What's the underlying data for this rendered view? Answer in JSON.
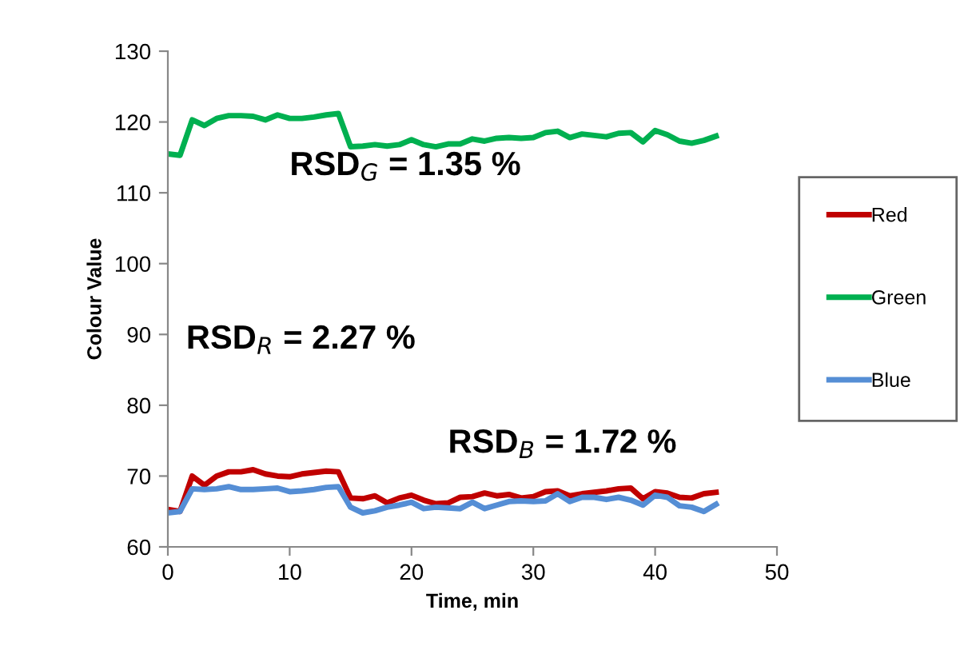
{
  "chart_data": {
    "type": "line",
    "xlabel": "Time, min",
    "ylabel": "Colour Value",
    "x": [
      0,
      1,
      2,
      3,
      4,
      5,
      6,
      7,
      8,
      9,
      10,
      11,
      12,
      13,
      14,
      15,
      16,
      17,
      18,
      19,
      20,
      21,
      22,
      23,
      24,
      25,
      26,
      27,
      28,
      29,
      30,
      31,
      32,
      33,
      34,
      35,
      36,
      37,
      38,
      39,
      40,
      41,
      42,
      43,
      44,
      45
    ],
    "series": [
      {
        "name": "Red",
        "color": "#c00000",
        "values": [
          65.3,
          65,
          70,
          68.7,
          70,
          70.6,
          70.6,
          70.9,
          70.3,
          70,
          69.9,
          70.3,
          70.5,
          70.7,
          70.6,
          66.9,
          66.8,
          67.2,
          66.2,
          66.9,
          67.3,
          66.6,
          66.1,
          66.2,
          67,
          67.1,
          67.6,
          67.2,
          67.4,
          66.9,
          67.1,
          67.8,
          67.9,
          67.2,
          67.5,
          67.7,
          67.9,
          68.2,
          68.3,
          66.8,
          67.8,
          67.6,
          67,
          66.9,
          67.5,
          67.7
        ]
      },
      {
        "name": "Green",
        "color": "#00b050",
        "values": [
          115.5,
          115.3,
          120.3,
          119.5,
          120.5,
          120.9,
          120.9,
          120.8,
          120.3,
          121,
          120.5,
          120.5,
          120.7,
          121,
          121.2,
          116.5,
          116.6,
          116.8,
          116.6,
          116.8,
          117.5,
          116.8,
          116.5,
          116.9,
          116.9,
          117.6,
          117.3,
          117.7,
          117.8,
          117.7,
          117.8,
          118.5,
          118.7,
          117.8,
          118.3,
          118.1,
          117.9,
          118.4,
          118.5,
          117.2,
          118.8,
          118.2,
          117.3,
          117,
          117.4,
          118
        ]
      },
      {
        "name": "Blue",
        "color": "#558ed5",
        "values": [
          64.8,
          65,
          68.2,
          68.1,
          68.2,
          68.5,
          68.1,
          68.1,
          68.2,
          68.3,
          67.8,
          67.9,
          68.1,
          68.4,
          68.5,
          65.6,
          64.8,
          65.1,
          65.6,
          65.9,
          66.3,
          65.4,
          65.6,
          65.5,
          65.4,
          66.3,
          65.4,
          65.9,
          66.4,
          66.5,
          66.4,
          66.5,
          67.5,
          66.4,
          67,
          67,
          66.7,
          67,
          66.6,
          65.9,
          67.3,
          67,
          65.8,
          65.6,
          65,
          66
        ]
      }
    ],
    "annotations": [
      "RSD$_{G}$ = 1.35 %",
      "RSD$_{R}$ = 2.27 %",
      "RSD$_{B}$ = 1.72 %"
    ],
    "xlim": [
      0,
      50
    ],
    "xticks": [
      0,
      10,
      20,
      30,
      40,
      50
    ],
    "ylim": [
      60,
      130
    ],
    "yticks": [
      60,
      70,
      80,
      90,
      100,
      110,
      120,
      130
    ],
    "grid": false,
    "legend": "right",
    "marker": "none",
    "line_style": "solid"
  }
}
